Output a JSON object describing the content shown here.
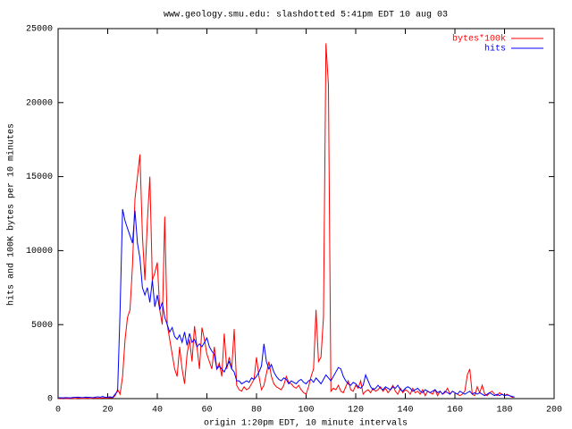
{
  "chart_data": {
    "type": "line",
    "title": "www.geology.smu.edu: slashdotted 5:41pm EDT 10 aug 03",
    "xlabel": "origin 1:20pm EDT, 10 minute intervals",
    "ylabel": "hits and 100K bytes per 10 minutes",
    "xlim": [
      0,
      200
    ],
    "xticks": [
      0,
      20,
      40,
      60,
      80,
      100,
      120,
      140,
      160,
      180,
      200
    ],
    "ylim": [
      0,
      25000
    ],
    "yticks": [
      0,
      5000,
      10000,
      15000,
      20000,
      25000
    ],
    "legend": "top-right",
    "x": [
      0,
      1,
      2,
      3,
      4,
      5,
      6,
      7,
      8,
      9,
      10,
      11,
      12,
      13,
      14,
      15,
      16,
      17,
      18,
      19,
      20,
      21,
      22,
      23,
      24,
      25,
      26,
      27,
      28,
      29,
      30,
      31,
      32,
      33,
      34,
      35,
      36,
      37,
      38,
      39,
      40,
      41,
      42,
      43,
      44,
      45,
      46,
      47,
      48,
      49,
      50,
      51,
      52,
      53,
      54,
      55,
      56,
      57,
      58,
      59,
      60,
      61,
      62,
      63,
      64,
      65,
      66,
      67,
      68,
      69,
      70,
      71,
      72,
      73,
      74,
      75,
      76,
      77,
      78,
      79,
      80,
      81,
      82,
      83,
      84,
      85,
      86,
      87,
      88,
      89,
      90,
      91,
      92,
      93,
      94,
      95,
      96,
      97,
      98,
      99,
      100,
      101,
      102,
      103,
      104,
      105,
      106,
      107,
      108,
      109,
      110,
      111,
      112,
      113,
      114,
      115,
      116,
      117,
      118,
      119,
      120,
      121,
      122,
      123,
      124,
      125,
      126,
      127,
      128,
      129,
      130,
      131,
      132,
      133,
      134,
      135,
      136,
      137,
      138,
      139,
      140,
      141,
      142,
      143,
      144,
      145,
      146,
      147,
      148,
      149,
      150,
      151,
      152,
      153,
      154,
      155,
      156,
      157,
      158,
      159,
      160,
      161,
      162,
      163,
      164,
      165,
      166,
      167,
      168,
      169,
      170,
      171,
      172,
      173,
      174,
      175,
      176,
      177,
      178,
      179,
      180,
      181,
      182,
      183,
      184
    ],
    "series": [
      {
        "name": "bytes*100k",
        "color": "#ff0000",
        "values": [
          0,
          10,
          20,
          10,
          0,
          30,
          20,
          10,
          40,
          20,
          10,
          20,
          30,
          10,
          20,
          40,
          30,
          20,
          50,
          30,
          40,
          60,
          50,
          200,
          600,
          300,
          1500,
          4000,
          5500,
          6000,
          9000,
          13500,
          15000,
          16500,
          11000,
          8000,
          12000,
          15000,
          8000,
          8500,
          9200,
          6000,
          5000,
          12300,
          5000,
          4000,
          3000,
          2000,
          1500,
          3500,
          2000,
          1000,
          3000,
          4000,
          2500,
          4900,
          3500,
          2000,
          4800,
          4000,
          3000,
          2500,
          2000,
          3500,
          2000,
          2400,
          1500,
          4400,
          2000,
          2800,
          2000,
          4700,
          900,
          600,
          500,
          800,
          600,
          700,
          1000,
          1300,
          2800,
          1500,
          600,
          900,
          1700,
          2500,
          1500,
          1000,
          800,
          700,
          600,
          900,
          1500,
          1100,
          1000,
          800,
          700,
          900,
          600,
          400,
          300,
          800,
          1500,
          2000,
          6000,
          2500,
          2800,
          5500,
          24000,
          21200,
          500,
          700,
          600,
          900,
          500,
          400,
          800,
          1200,
          600,
          500,
          900,
          700,
          1200,
          300,
          500,
          600,
          400,
          700,
          500,
          600,
          800,
          500,
          700,
          400,
          600,
          900,
          500,
          300,
          700,
          400,
          600,
          500,
          300,
          700,
          400,
          500,
          300,
          600,
          200,
          500,
          400,
          300,
          600,
          200,
          500,
          300,
          400,
          700,
          300,
          500,
          400,
          300,
          200,
          300,
          500,
          1600,
          2000,
          300,
          200,
          800,
          400,
          900,
          300,
          200,
          400,
          500,
          300,
          200,
          400,
          300,
          200,
          300,
          200,
          100,
          100
        ]
      },
      {
        "name": "hits",
        "color": "#0000ff",
        "values": [
          50,
          60,
          50,
          70,
          60,
          50,
          80,
          90,
          100,
          80,
          70,
          100,
          90,
          80,
          60,
          100,
          120,
          90,
          150,
          80,
          100,
          120,
          80,
          300,
          500,
          6000,
          12800,
          12000,
          11500,
          11000,
          10500,
          12700,
          10500,
          9500,
          7500,
          7000,
          7500,
          6500,
          8000,
          6200,
          7000,
          6000,
          6500,
          5500,
          5000,
          4500,
          4800,
          4200,
          4000,
          4300,
          3800,
          4500,
          3600,
          4400,
          3800,
          4000,
          3500,
          3700,
          3500,
          3800,
          4100,
          3500,
          3200,
          3000,
          2000,
          2200,
          2000,
          1800,
          2200,
          2500,
          2000,
          1800,
          1200,
          1200,
          1000,
          1100,
          1200,
          1100,
          1400,
          1300,
          1500,
          1800,
          2200,
          3700,
          2500,
          2000,
          2300,
          1800,
          1500,
          1300,
          1200,
          1400,
          1300,
          1000,
          1200,
          1100,
          1000,
          1200,
          1300,
          1100,
          1000,
          1200,
          1300,
          1100,
          1400,
          1200,
          1000,
          1300,
          1600,
          1400,
          1200,
          1500,
          1800,
          2100,
          2000,
          1500,
          1200,
          1000,
          900,
          1100,
          1000,
          800,
          700,
          900,
          1600,
          1200,
          800,
          600,
          700,
          900,
          700,
          600,
          800,
          700,
          600,
          800,
          700,
          900,
          600,
          500,
          700,
          800,
          700,
          500,
          600,
          700,
          500,
          400,
          600,
          500,
          400,
          500,
          600,
          400,
          500,
          300,
          500,
          400,
          300,
          500,
          400,
          300,
          500,
          400,
          300,
          400,
          500,
          300,
          400,
          300,
          400,
          300,
          200,
          300,
          400,
          300,
          200,
          300,
          200,
          300,
          200,
          250,
          200,
          150,
          100
        ]
      }
    ]
  }
}
